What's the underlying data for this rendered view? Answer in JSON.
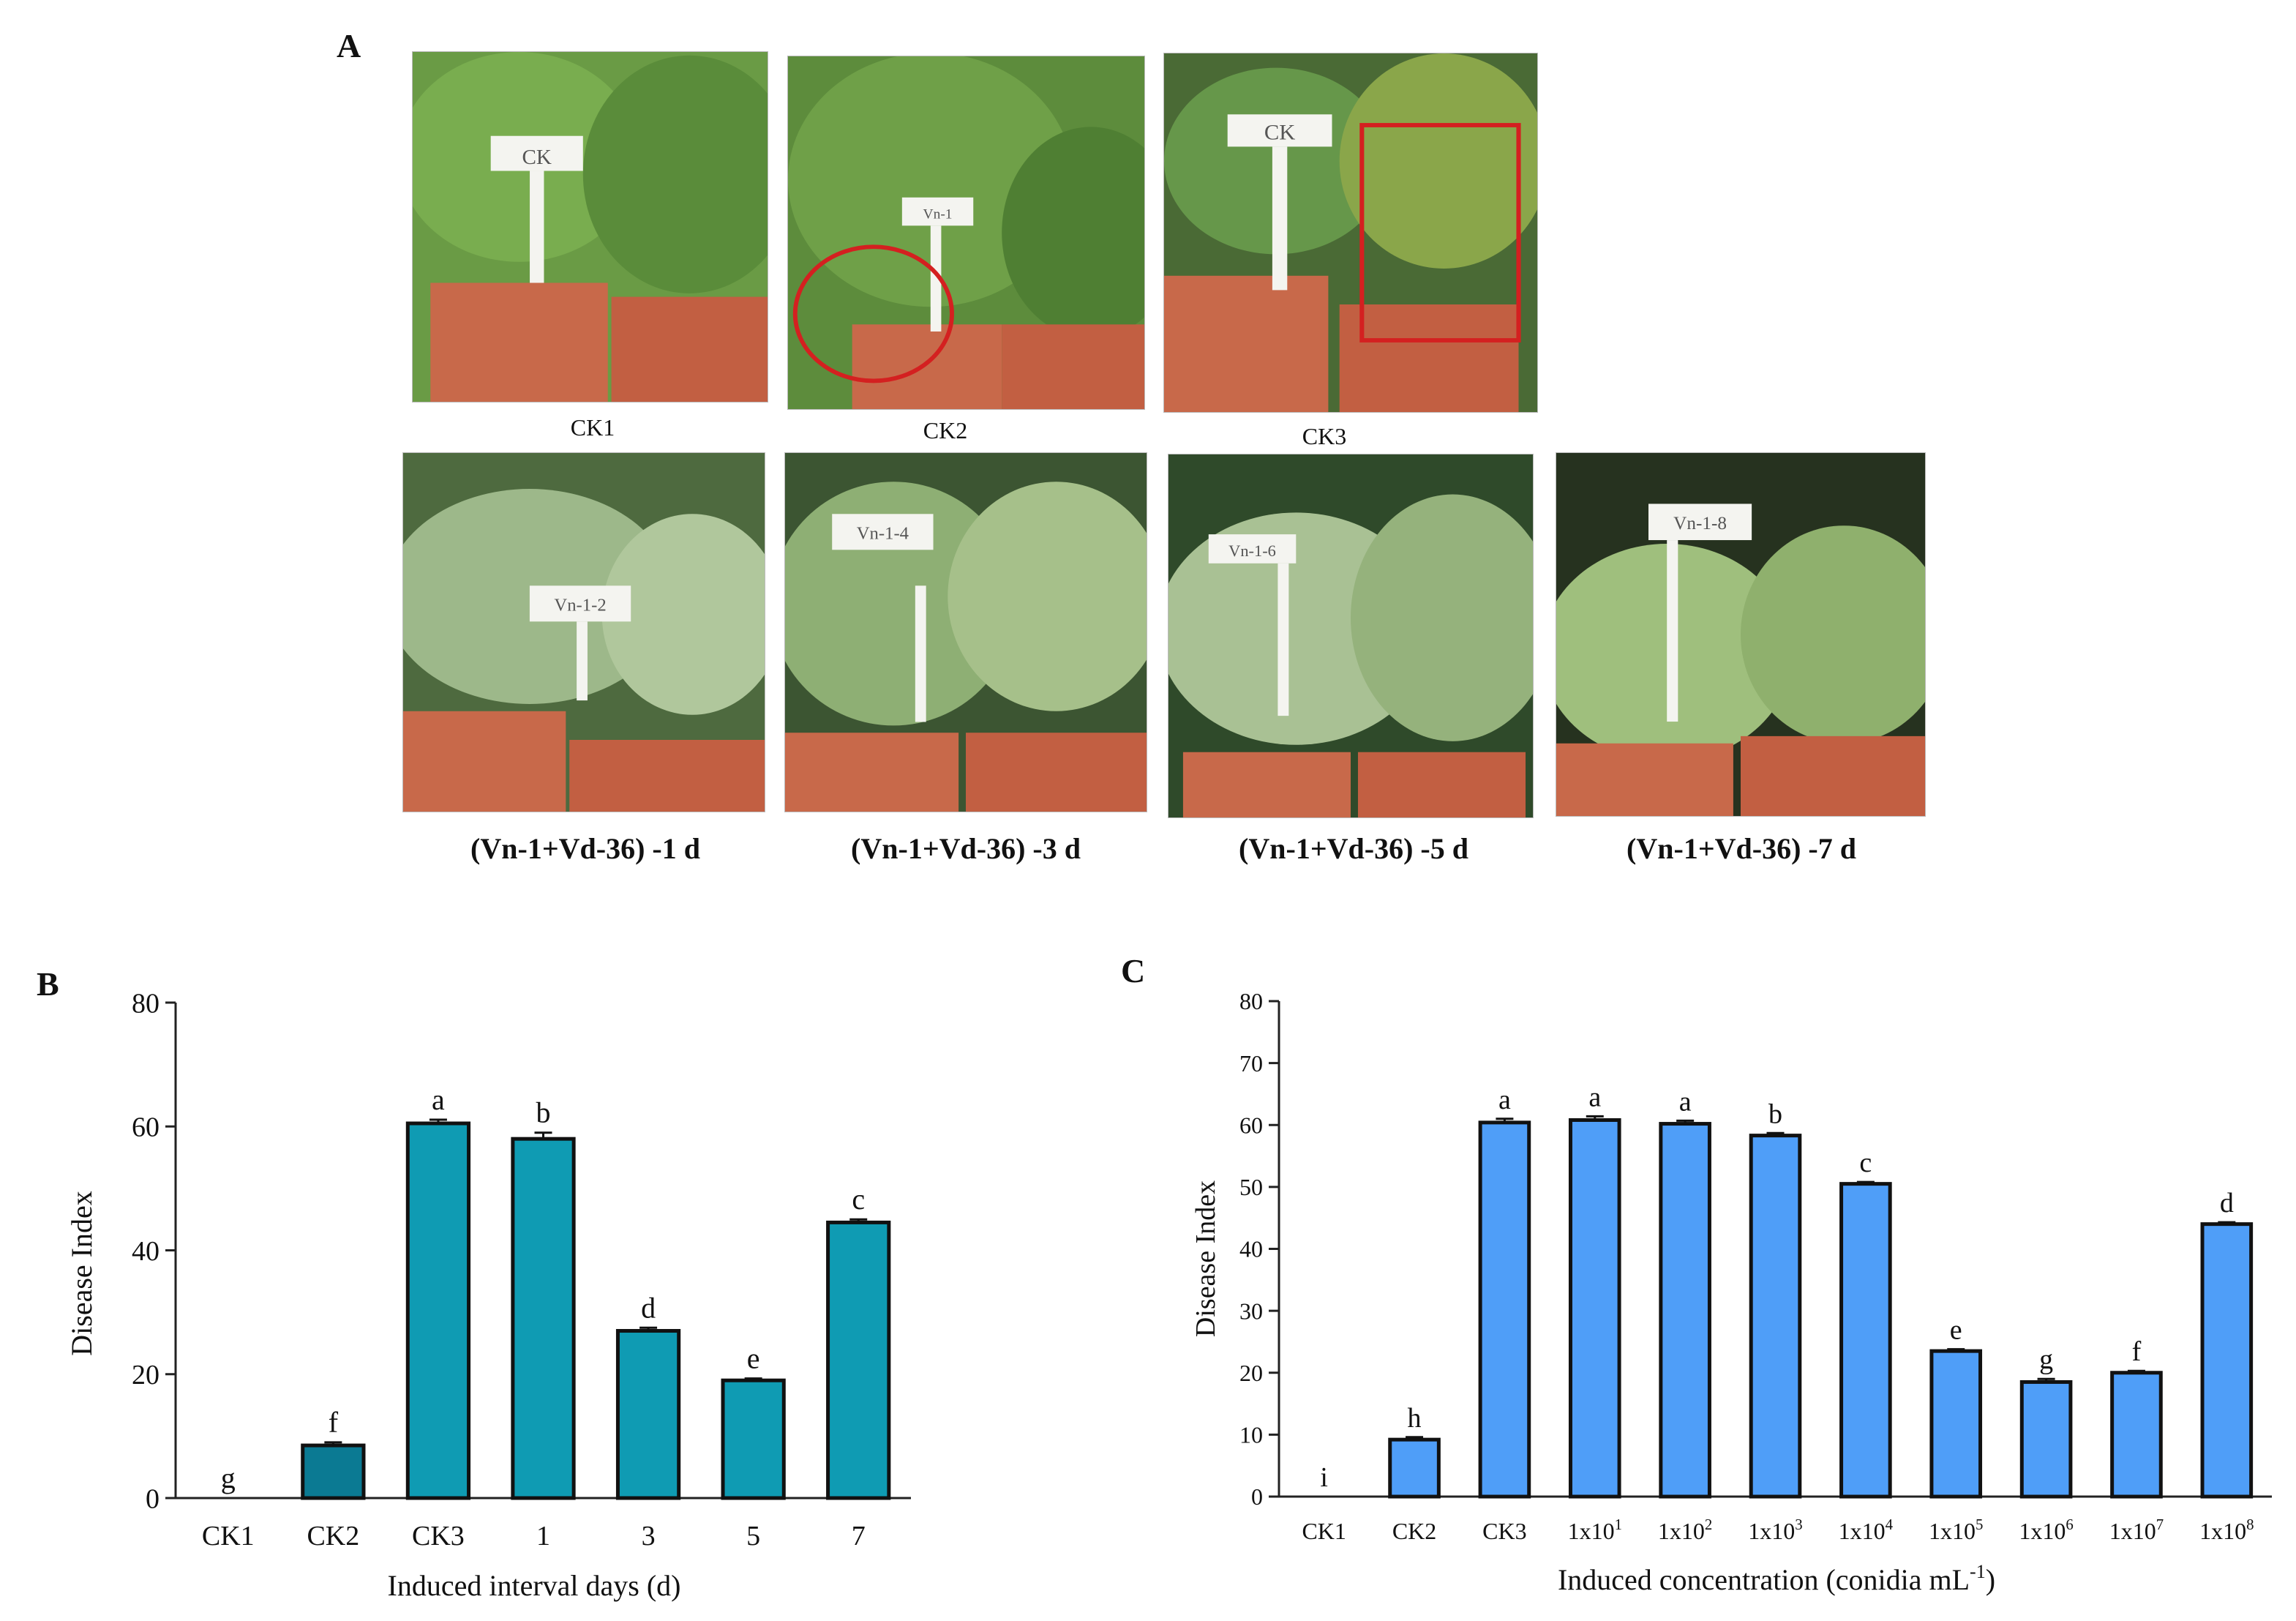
{
  "panel_labels": {
    "a": "A",
    "b": "B",
    "c": "C"
  },
  "photos": {
    "top": [
      {
        "caption": "CK1",
        "sign": "CK",
        "marker": "none"
      },
      {
        "caption": "CK2",
        "sign": "Vn-1",
        "marker": "circle"
      },
      {
        "caption": "CK3",
        "sign": "CK",
        "marker": "square"
      }
    ],
    "bottom": [
      {
        "caption": "(Vn-1+Vd-36) -1 d",
        "sign": "Vn-1-2"
      },
      {
        "caption": "(Vn-1+Vd-36) -3 d",
        "sign": "Vn-1-4"
      },
      {
        "caption": "(Vn-1+Vd-36) -5 d",
        "sign": "Vn-1-6"
      },
      {
        "caption": "(Vn-1+Vd-36) -7 d",
        "sign": "Vn-1-8"
      }
    ],
    "colors": {
      "pot": "#c8694a",
      "foliage": "#5f8f3a",
      "sign": "#f4f4f0",
      "marker": "#d42020"
    }
  },
  "chart_data": [
    {
      "id": "B",
      "type": "bar",
      "categories": [
        "CK1",
        "CK2",
        "CK3",
        "1",
        "3",
        "5",
        "7"
      ],
      "values": [
        0,
        8.5,
        60.5,
        58,
        27,
        19,
        44.5
      ],
      "errors": [
        0,
        0.5,
        0.6,
        1.0,
        0.5,
        0.3,
        0.5
      ],
      "letters": [
        "g",
        "f",
        "a",
        "b",
        "d",
        "e",
        "c"
      ],
      "colors": [
        "#0f9bb3",
        "#0b7a93",
        "#0f9bb3",
        "#0f9bb3",
        "#0f9bb3",
        "#0f9bb3",
        "#0f9bb3"
      ],
      "xlabel": "Induced interval days (d)",
      "ylabel": "Disease Index",
      "ylim": [
        0,
        80
      ],
      "yticks": [
        0,
        20,
        40,
        60,
        80
      ]
    },
    {
      "id": "C",
      "type": "bar",
      "categories": [
        "CK1",
        "CK2",
        "CK3",
        "1x10^1",
        "1x10^2",
        "1x10^3",
        "1x10^4",
        "1x10^5",
        "1x10^6",
        "1x10^7",
        "1x10^8"
      ],
      "values": [
        0,
        9.2,
        60.4,
        60.8,
        60.2,
        58.3,
        50.5,
        23.5,
        18.5,
        20.0,
        44.0
      ],
      "errors": [
        0,
        0.4,
        0.6,
        0.6,
        0.5,
        0.4,
        0.3,
        0.3,
        0.5,
        0.3,
        0.3
      ],
      "letters": [
        "i",
        "h",
        "a",
        "a",
        "a",
        "b",
        "c",
        "e",
        "g",
        "f",
        "d"
      ],
      "colors": [
        "#4f9ef8"
      ],
      "xlabel": "Induced concentration (conidia mL^-1)",
      "ylabel": "Disease Index",
      "ylim": [
        0,
        80
      ],
      "yticks": [
        0,
        10,
        20,
        30,
        40,
        50,
        60,
        70,
        80
      ]
    }
  ]
}
